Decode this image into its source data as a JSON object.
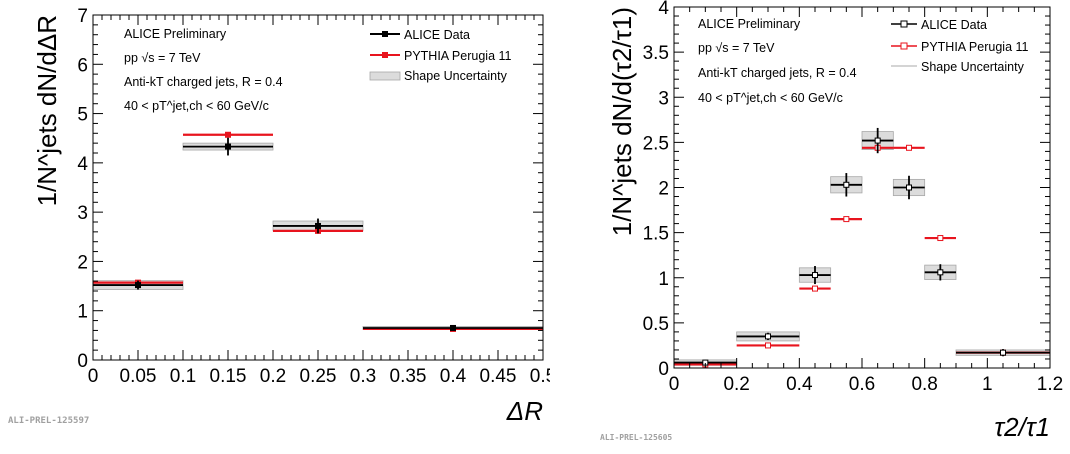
{
  "chart_data": [
    {
      "type": "scatter",
      "xlabel": "ΔR",
      "ylabel": "1/N^jets dN/dΔR",
      "xlim": [
        0,
        0.5
      ],
      "ylim": [
        0,
        7
      ],
      "x_ticks": [
        "0",
        "0.05",
        "0.1",
        "0.15",
        "0.2",
        "0.25",
        "0.3",
        "0.35",
        "0.4",
        "0.45",
        "0.5"
      ],
      "y_ticks": [
        "0",
        "1",
        "2",
        "3",
        "4",
        "5",
        "6",
        "7"
      ],
      "annotations": [
        "ALICE Preliminary",
        "pp √s = 7 TeV",
        "Anti-kT charged jets, R = 0.4",
        "40 < pT^jet,ch < 60 GeV/c"
      ],
      "legend": [
        "ALICE Data",
        "PYTHIA Perugia 11",
        "Shape Uncertainty"
      ],
      "legend_position": "top-right",
      "preliminary_id": "ALI-PREL-125597",
      "bins": [
        [
          0.0,
          0.1
        ],
        [
          0.1,
          0.2
        ],
        [
          0.2,
          0.3
        ],
        [
          0.3,
          0.5
        ]
      ],
      "series": [
        {
          "name": "ALICE Data",
          "values": [
            1.52,
            4.33,
            2.72,
            0.65
          ],
          "stat_err": [
            0.09,
            0.18,
            0.15,
            0.04
          ]
        },
        {
          "name": "PYTHIA Perugia 11",
          "values": [
            1.57,
            4.57,
            2.62,
            0.63
          ]
        },
        {
          "name": "Shape Uncertainty",
          "values": [
            1.52,
            4.33,
            2.72,
            0.65
          ],
          "sys_err": [
            0.09,
            0.07,
            0.1,
            0.03
          ]
        }
      ]
    },
    {
      "type": "scatter",
      "xlabel": "τ2/τ1",
      "ylabel": "1/N^jets dN/d(τ2/τ1)",
      "xlim": [
        0,
        1.2
      ],
      "ylim": [
        0,
        4
      ],
      "x_ticks": [
        "0",
        "0.2",
        "0.4",
        "0.6",
        "0.8",
        "1",
        "1.2"
      ],
      "y_ticks": [
        "0",
        "0.5",
        "1",
        "1.5",
        "2",
        "2.5",
        "3",
        "3.5",
        "4"
      ],
      "annotations": [
        "ALICE Preliminary",
        "pp √s = 7 TeV",
        "Anti-kT charged jets, R = 0.4",
        "40 < pT^jet,ch < 60 GeV/c"
      ],
      "legend": [
        "ALICE Data",
        "PYTHIA Perugia 11",
        "Shape Uncertainty"
      ],
      "legend_position": "top-right",
      "preliminary_id": "ALI-PREL-125605",
      "bins": [
        [
          0.0,
          0.2
        ],
        [
          0.2,
          0.4
        ],
        [
          0.4,
          0.5
        ],
        [
          0.5,
          0.6
        ],
        [
          0.6,
          0.7
        ],
        [
          0.7,
          0.8
        ],
        [
          0.8,
          0.9
        ],
        [
          0.9,
          1.2
        ]
      ],
      "series": [
        {
          "name": "ALICE Data",
          "values": [
            0.06,
            0.35,
            1.03,
            2.03,
            2.52,
            2.0,
            1.06,
            0.17
          ],
          "stat_err": [
            0.03,
            0.04,
            0.1,
            0.13,
            0.14,
            0.13,
            0.09,
            0.04
          ]
        },
        {
          "name": "PYTHIA Perugia 11",
          "values": [
            0.04,
            0.25,
            0.88,
            1.65,
            2.44,
            2.44,
            1.44,
            0.17
          ]
        },
        {
          "name": "Shape Uncertainty",
          "values": [
            0.06,
            0.35,
            1.03,
            2.03,
            2.52,
            2.0,
            1.06,
            0.17
          ],
          "sys_err": [
            0.03,
            0.05,
            0.08,
            0.09,
            0.1,
            0.09,
            0.08,
            0.03
          ]
        }
      ]
    }
  ],
  "colors": {
    "data": "#000000",
    "pythia": "#e8141e",
    "band_fill": "#dcdcdc",
    "band_stroke": "#a8a8a8",
    "prelim_text": "#a0a0a0"
  }
}
